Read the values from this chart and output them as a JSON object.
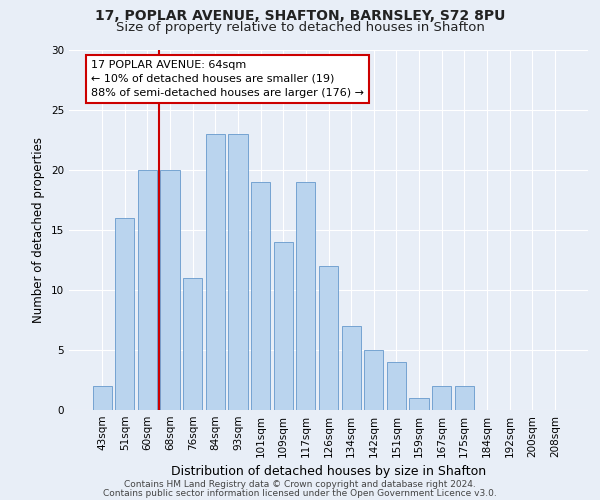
{
  "title1": "17, POPLAR AVENUE, SHAFTON, BARNSLEY, S72 8PU",
  "title2": "Size of property relative to detached houses in Shafton",
  "xlabel": "Distribution of detached houses by size in Shafton",
  "ylabel": "Number of detached properties",
  "categories": [
    "43sqm",
    "51sqm",
    "60sqm",
    "68sqm",
    "76sqm",
    "84sqm",
    "93sqm",
    "101sqm",
    "109sqm",
    "117sqm",
    "126sqm",
    "134sqm",
    "142sqm",
    "151sqm",
    "159sqm",
    "167sqm",
    "175sqm",
    "184sqm",
    "192sqm",
    "200sqm",
    "208sqm"
  ],
  "values": [
    2,
    16,
    20,
    20,
    11,
    23,
    23,
    19,
    14,
    19,
    12,
    7,
    5,
    4,
    1,
    2,
    2,
    0,
    0,
    0,
    0
  ],
  "bar_color": "#bad4ee",
  "bar_edge_color": "#6699cc",
  "vline_x_index": 2.5,
  "vline_color": "#cc0000",
  "annotation_title": "17 POPLAR AVENUE: 64sqm",
  "annotation_line1": "← 10% of detached houses are smaller (19)",
  "annotation_line2": "88% of semi-detached houses are larger (176) →",
  "annotation_box_color": "#ffffff",
  "annotation_box_edge": "#cc0000",
  "ylim": [
    0,
    30
  ],
  "yticks": [
    0,
    5,
    10,
    15,
    20,
    25,
    30
  ],
  "footer1": "Contains HM Land Registry data © Crown copyright and database right 2024.",
  "footer2": "Contains public sector information licensed under the Open Government Licence v3.0.",
  "bg_color": "#e8eef7",
  "grid_color": "#ffffff",
  "title1_fontsize": 10,
  "title2_fontsize": 9.5,
  "axis_label_fontsize": 8.5,
  "tick_fontsize": 7.5,
  "annot_fontsize": 8,
  "footer_fontsize": 6.5
}
